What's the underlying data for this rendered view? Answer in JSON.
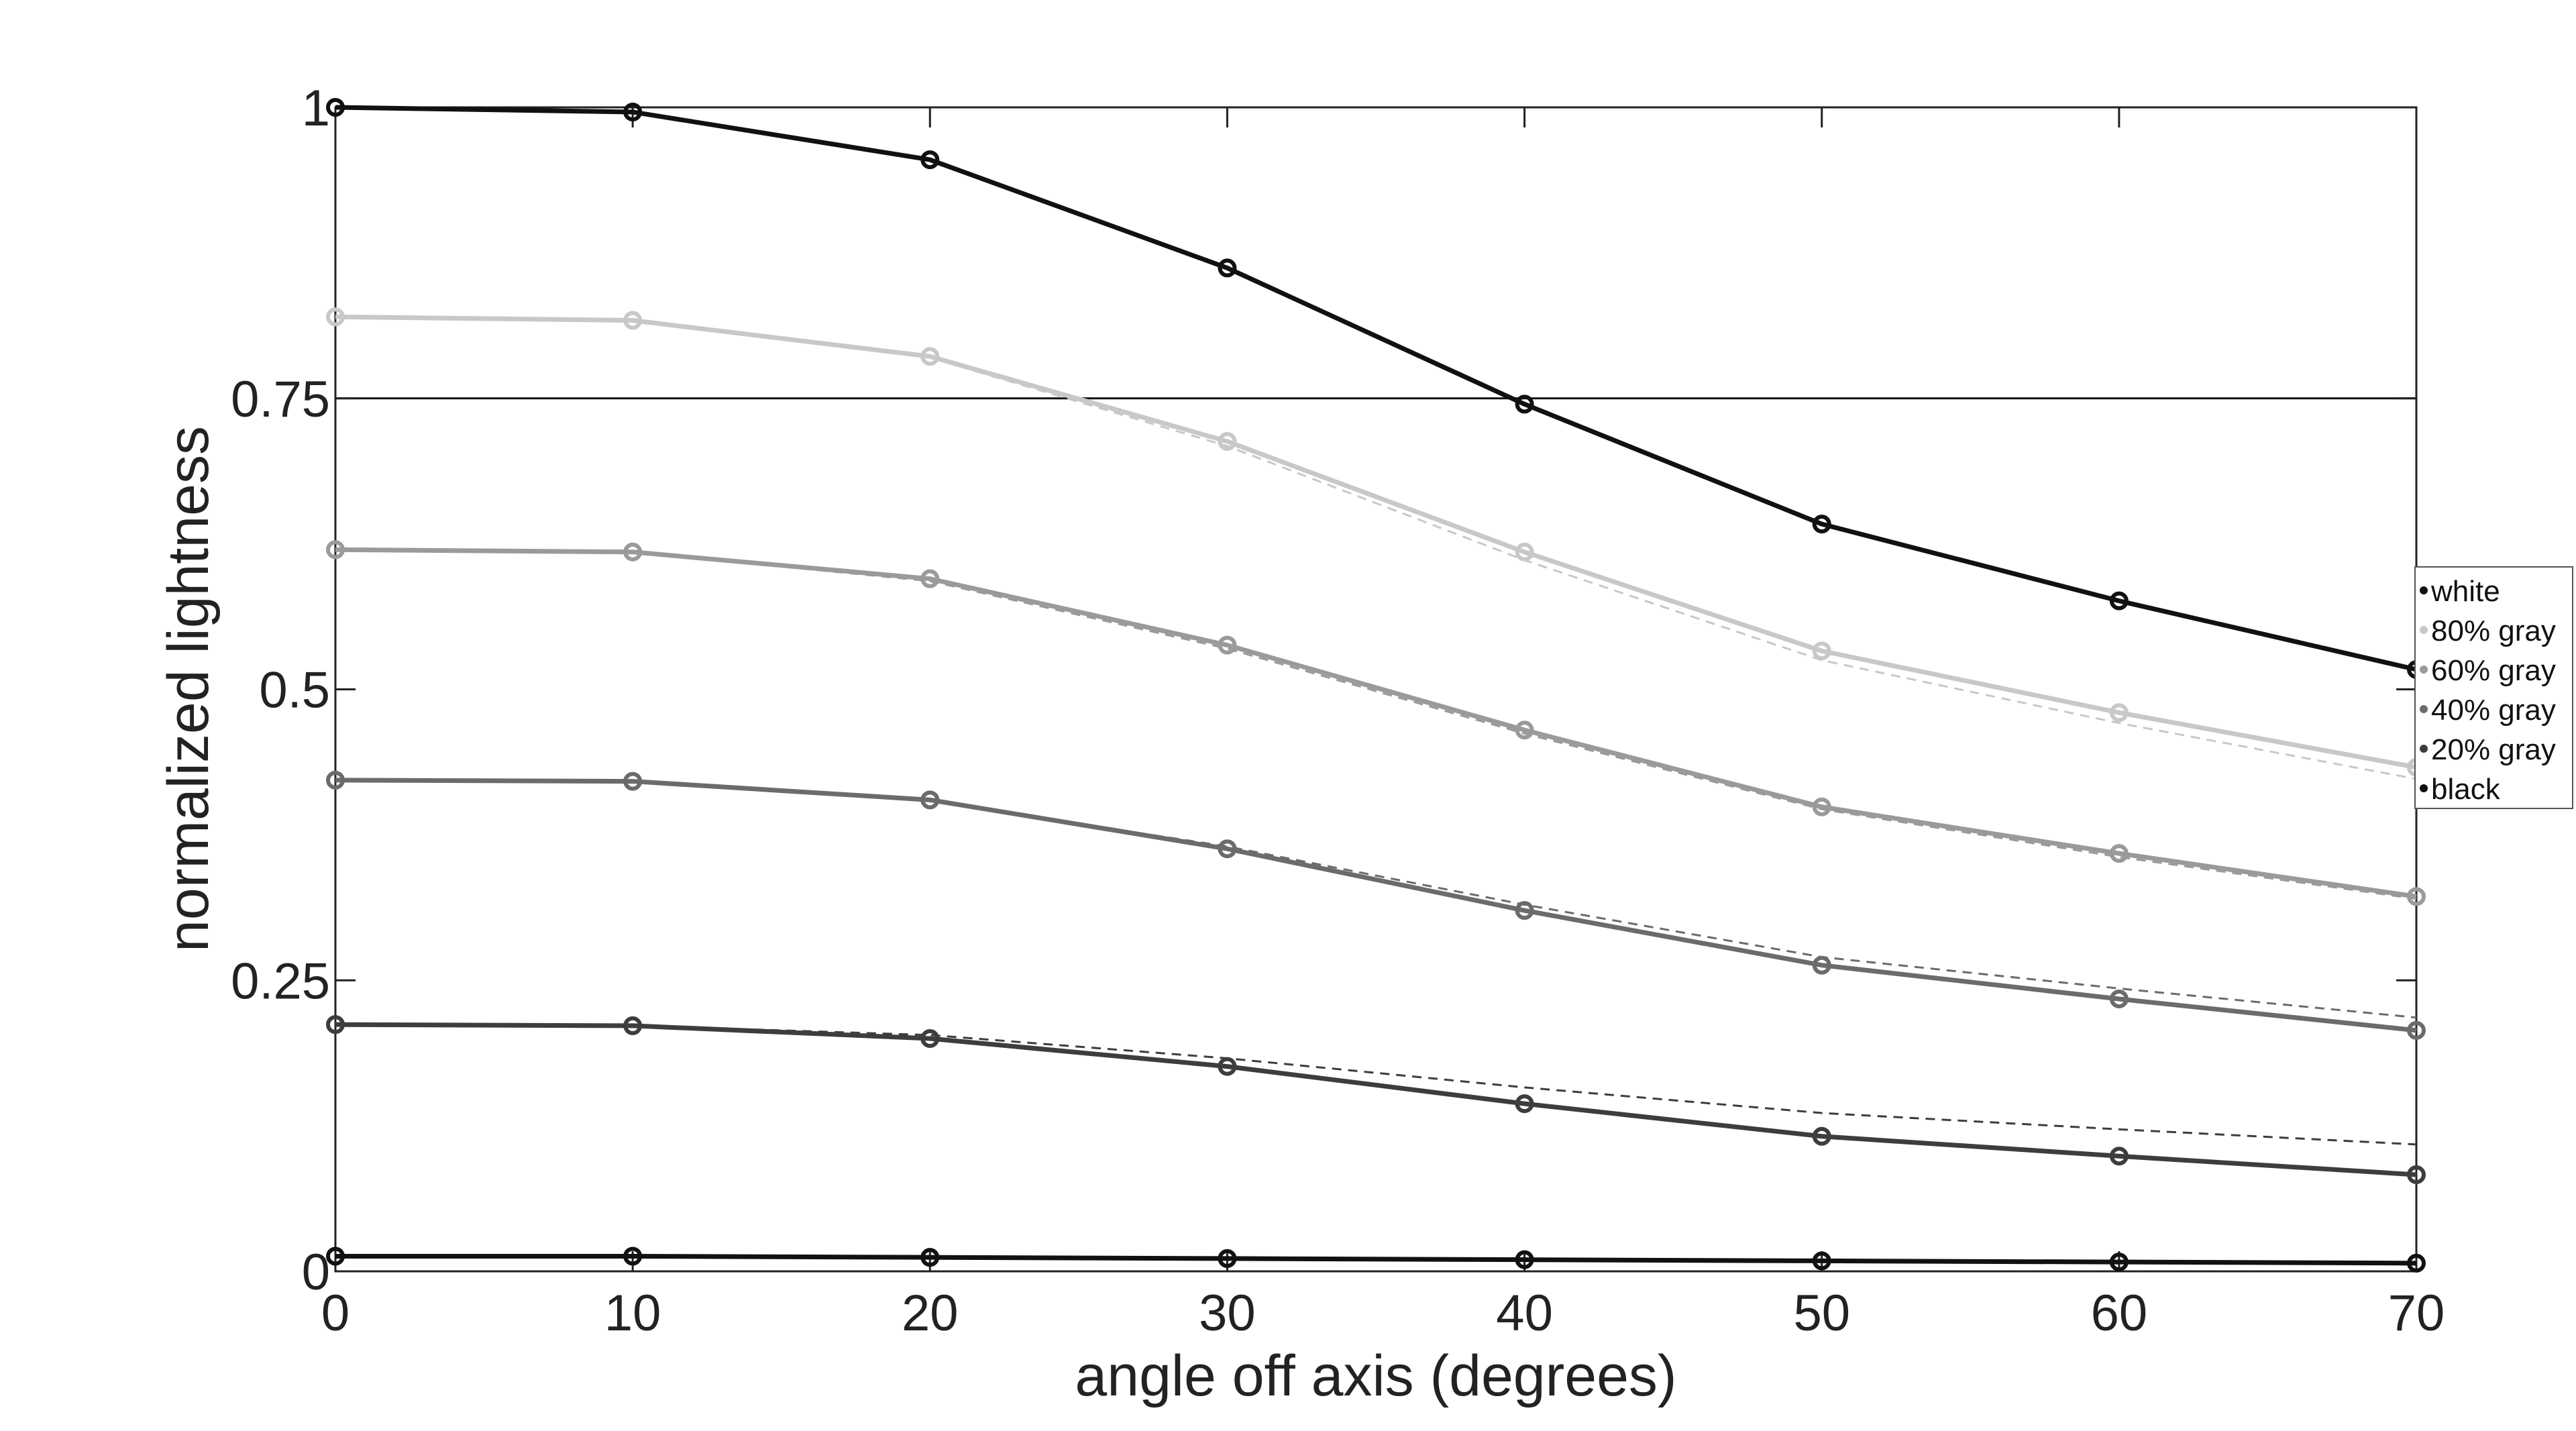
{
  "chart_data": {
    "type": "line",
    "title": "",
    "xlabel": "angle off axis (degrees)",
    "ylabel": "normalized lightness",
    "xlim": [
      0,
      70
    ],
    "ylim": [
      0,
      1
    ],
    "x": [
      0,
      10,
      20,
      30,
      40,
      50,
      60,
      70
    ],
    "xticks": [
      0,
      10,
      20,
      30,
      40,
      50,
      60,
      70
    ],
    "yticks": [
      0,
      0.25,
      0.5,
      0.75,
      1
    ],
    "xtick_labels": [
      "0",
      "10",
      "20",
      "30",
      "40",
      "50",
      "60",
      "70"
    ],
    "ytick_labels": [
      "0",
      "0.25",
      "0.5",
      "0.75",
      "1"
    ],
    "reference_line": 0.75,
    "grid": false,
    "legend_position": "right",
    "series": [
      {
        "name": "white",
        "color": "#111111",
        "values": [
          1.0,
          0.996,
          0.955,
          0.862,
          0.745,
          0.642,
          0.576,
          0.517
        ]
      },
      {
        "name": "80% gray",
        "color": "#c8c8c8",
        "values": [
          0.82,
          0.817,
          0.786,
          0.713,
          0.618,
          0.533,
          0.48,
          0.433
        ],
        "reference_values": [
          0.82,
          0.817,
          0.785,
          0.709,
          0.611,
          0.525,
          0.471,
          0.423
        ]
      },
      {
        "name": "60% gray",
        "color": "#9a9a9a",
        "values": [
          0.62,
          0.618,
          0.595,
          0.538,
          0.465,
          0.399,
          0.359,
          0.322
        ],
        "reference_values": [
          0.62,
          0.618,
          0.593,
          0.535,
          0.462,
          0.397,
          0.356,
          0.32
        ]
      },
      {
        "name": "40% gray",
        "color": "#6b6b6b",
        "values": [
          0.422,
          0.421,
          0.405,
          0.363,
          0.31,
          0.263,
          0.234,
          0.207
        ],
        "reference_values": [
          0.422,
          0.421,
          0.404,
          0.365,
          0.315,
          0.27,
          0.243,
          0.218
        ]
      },
      {
        "name": "20% gray",
        "color": "#3d3d3d",
        "values": [
          0.212,
          0.211,
          0.2,
          0.176,
          0.144,
          0.116,
          0.099,
          0.083
        ],
        "reference_values": [
          0.212,
          0.211,
          0.203,
          0.183,
          0.158,
          0.136,
          0.122,
          0.109
        ]
      },
      {
        "name": "black",
        "color": "#111111",
        "values": [
          0.013,
          0.013,
          0.012,
          0.011,
          0.01,
          0.009,
          0.008,
          0.007
        ]
      }
    ]
  }
}
